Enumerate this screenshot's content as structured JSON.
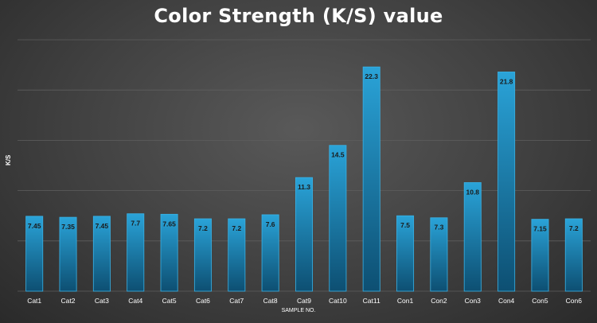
{
  "chart_data": {
    "type": "bar",
    "title": "Color Strength (K/S) value",
    "xlabel": "SAMPLE NO.",
    "ylabel": "K/S",
    "categories": [
      "Cat1",
      "Cat2",
      "Cat3",
      "Cat4",
      "Cat5",
      "Cat6",
      "Cat7",
      "Cat8",
      "Cat9",
      "Cat10",
      "Cat11",
      "Con1",
      "Con2",
      "Con3",
      "Con4",
      "Con5",
      "Con6"
    ],
    "values": [
      7.45,
      7.35,
      7.45,
      7.7,
      7.65,
      7.2,
      7.2,
      7.6,
      11.3,
      14.5,
      22.3,
      7.5,
      7.3,
      10.8,
      21.8,
      7.15,
      7.2
    ],
    "data_labels": [
      "7.45",
      "7.35",
      "7.45",
      "7.7",
      "7.65",
      "7.2",
      "7.2",
      "7.6",
      "11.3",
      "14.5",
      "22.3",
      "7.5",
      "7.3",
      "10.8",
      "21.8",
      "7.15",
      "7.2"
    ],
    "ylim": [
      0,
      25
    ],
    "grid": true,
    "legend": "none",
    "colors": {
      "bar_top": "#2aa3d8",
      "bar_bottom": "#0d4f72",
      "bar_stroke": "#39b2e6",
      "grid": "#5e5e5e",
      "text": "#ffffff",
      "data_label": "#1a1a1a"
    }
  }
}
